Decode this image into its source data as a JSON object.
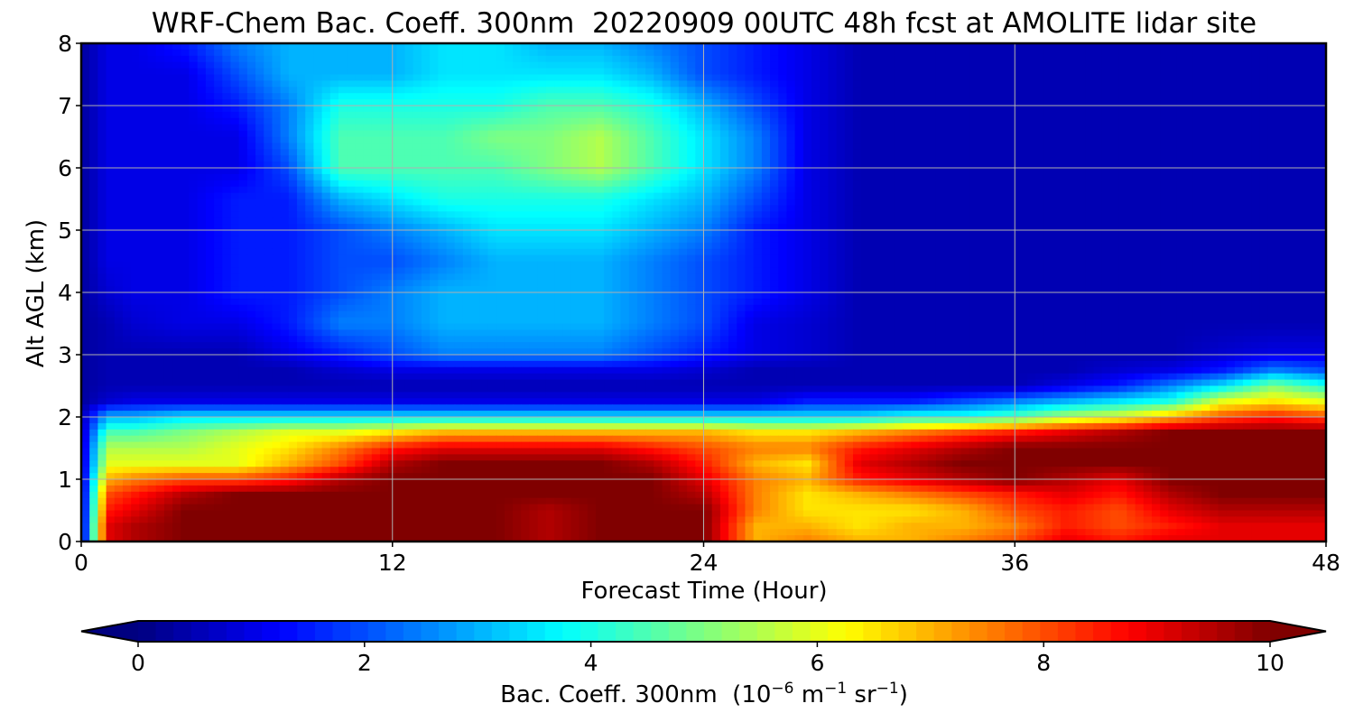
{
  "chart_data": {
    "type": "heatmap",
    "title": "WRF-Chem Bac. Coeff. 300nm  20220909 00UTC 48h fcst at AMOLITE lidar site",
    "xlabel": "Forecast Time (Hour)",
    "ylabel": "Alt AGL (km)",
    "xlim": [
      0,
      48
    ],
    "ylim": [
      0,
      8
    ],
    "xticks": [
      "0",
      "12",
      "24",
      "36",
      "48"
    ],
    "yticks": [
      "0",
      "1",
      "2",
      "3",
      "4",
      "5",
      "6",
      "7",
      "8"
    ],
    "grid": true,
    "colormap": "jet",
    "colorbar": {
      "orientation": "horizontal",
      "range": [
        0,
        10
      ],
      "ticks": [
        "0",
        "2",
        "4",
        "6",
        "8",
        "10"
      ],
      "extend": "both",
      "label_main": "Bac. Coeff. 300nm  (10",
      "label_exp1": "−6",
      "label_unit1": " m",
      "label_exp2": "−1",
      "label_unit2": " sr",
      "label_exp3": "−1",
      "label_close": ")"
    },
    "x": [
      0,
      1,
      2,
      4,
      6,
      8,
      10,
      12,
      14,
      16,
      18,
      20,
      22,
      24,
      26,
      28,
      30,
      32,
      34,
      36,
      38,
      40,
      42,
      44,
      46,
      48
    ],
    "y": [
      0,
      0.25,
      0.5,
      0.75,
      1,
      1.25,
      1.5,
      1.75,
      2,
      2.25,
      2.5,
      2.75,
      3,
      3.5,
      4,
      4.5,
      5,
      5.5,
      6,
      6.5,
      7,
      7.5,
      8
    ],
    "z": [
      [
        0.5,
        9,
        9.5,
        10,
        10,
        10,
        10,
        10,
        10,
        10,
        9.5,
        10,
        10,
        10,
        7,
        7.5,
        7,
        7,
        7.5,
        8,
        9,
        8.5,
        9,
        9,
        9,
        9
      ],
      [
        0.5,
        9,
        9.5,
        10,
        10,
        10,
        10,
        10,
        10,
        10,
        9.5,
        10,
        10,
        10,
        7,
        7,
        6.5,
        7,
        7,
        7.5,
        8.5,
        8,
        8.5,
        9,
        9,
        9
      ],
      [
        0.5,
        8.5,
        9,
        10,
        10,
        10,
        10,
        10,
        10,
        10,
        9.5,
        10,
        10,
        10,
        7.5,
        6.5,
        6.5,
        6.5,
        7,
        8,
        8.5,
        8,
        9,
        9.5,
        9.5,
        9.5
      ],
      [
        0.5,
        8,
        8.5,
        9.5,
        10,
        10,
        10,
        10,
        10,
        10,
        10,
        10,
        10,
        9.5,
        7.5,
        6.5,
        7,
        7.5,
        8,
        8.5,
        9,
        8.5,
        9.5,
        10,
        10,
        10
      ],
      [
        0.5,
        7,
        7.5,
        8,
        8,
        8.5,
        9.5,
        10,
        10,
        10,
        10,
        10,
        10,
        9,
        7.5,
        7,
        8.5,
        9,
        9.5,
        10,
        9.5,
        9,
        10,
        10,
        10,
        10
      ],
      [
        0.5,
        6,
        6,
        6,
        6,
        7,
        8,
        9.5,
        10,
        10,
        10,
        10,
        9.5,
        8.5,
        7,
        6.5,
        9,
        9.5,
        10,
        10,
        10,
        10,
        10,
        10,
        10,
        10
      ],
      [
        0.5,
        5.5,
        5.5,
        5.5,
        6,
        6.5,
        7.5,
        8.5,
        9,
        9,
        9,
        9,
        8.5,
        8,
        7.5,
        7.5,
        8.5,
        9,
        9.5,
        10,
        10,
        10,
        10,
        10,
        10,
        10
      ],
      [
        0.5,
        4.5,
        4.5,
        5,
        5.5,
        6,
        6,
        6.5,
        7,
        7,
        7,
        7,
        7,
        7,
        6.5,
        6.5,
        7,
        7.5,
        8,
        8.5,
        9,
        9.5,
        10,
        10,
        10,
        10
      ],
      [
        0.5,
        3,
        3,
        3.5,
        3.5,
        3.5,
        3.5,
        3.5,
        3.5,
        3.5,
        3.5,
        3.5,
        3.5,
        3.5,
        3.5,
        3.5,
        3.5,
        4,
        4,
        4.5,
        5.5,
        6,
        7,
        8,
        8.5,
        8
      ],
      [
        0.3,
        0.8,
        1,
        1,
        1,
        1,
        1,
        1,
        1,
        1,
        1,
        1,
        1,
        1,
        1,
        1.5,
        1.5,
        1.5,
        2,
        2.5,
        3,
        3.5,
        4,
        6,
        6.5,
        6
      ],
      [
        0.3,
        0.5,
        0.5,
        0.5,
        0.5,
        0.5,
        0.5,
        0.5,
        0.5,
        0.5,
        0.5,
        0.5,
        0.5,
        0.5,
        0.5,
        0.5,
        0.5,
        0.5,
        0.5,
        0.5,
        1,
        1.5,
        2.5,
        3.5,
        5,
        4
      ],
      [
        0.3,
        0.5,
        0.5,
        0.5,
        0.5,
        0.5,
        0.8,
        1,
        1,
        1,
        1,
        1,
        1,
        0.8,
        0.5,
        0.5,
        0.5,
        0.5,
        0.5,
        0.5,
        0.5,
        0.8,
        1,
        1.5,
        2.5,
        2
      ],
      [
        0.3,
        0.5,
        0.5,
        0.5,
        0.5,
        1,
        1.5,
        2,
        2.5,
        2.5,
        2.5,
        2.5,
        2,
        1.5,
        1,
        0.8,
        0.5,
        0.5,
        0.5,
        0.5,
        0.5,
        0.5,
        0.5,
        0.8,
        1,
        1
      ],
      [
        0.3,
        0.5,
        0.8,
        1,
        1,
        1.5,
        2.5,
        2.5,
        3,
        3,
        3,
        3,
        2.5,
        2,
        1,
        0.8,
        0.5,
        0.5,
        0.5,
        0.5,
        0.5,
        0.5,
        0.5,
        0.5,
        0.5,
        0.5
      ],
      [
        0.3,
        0.8,
        1,
        1,
        1.5,
        1.5,
        2,
        2.5,
        3,
        3,
        3,
        3,
        2.5,
        2,
        1.5,
        1,
        0.5,
        0.5,
        0.5,
        0.5,
        0.5,
        0.5,
        0.5,
        0.5,
        0.5,
        0.5
      ],
      [
        0.3,
        1,
        1,
        1,
        1.5,
        1.5,
        2,
        2,
        2.5,
        3,
        3,
        3,
        2.5,
        2,
        1.5,
        1,
        0.5,
        0.5,
        0.5,
        0.5,
        0.5,
        0.5,
        0.5,
        0.5,
        0.5,
        0.5
      ],
      [
        0.3,
        1,
        1,
        1,
        1.5,
        1.5,
        2,
        2.5,
        3,
        3.5,
        3.5,
        3.5,
        3,
        2.5,
        1.5,
        1,
        0.5,
        0.5,
        0.5,
        0.5,
        0.5,
        0.5,
        0.5,
        0.5,
        0.5,
        0.5
      ],
      [
        0.3,
        1,
        1,
        1,
        1.5,
        1.5,
        3,
        3.5,
        4,
        4,
        4,
        4,
        3.5,
        3,
        2,
        1,
        0.5,
        0.5,
        0.5,
        0.5,
        0.5,
        0.5,
        0.5,
        0.5,
        0.5,
        0.5
      ],
      [
        0.3,
        1,
        1,
        1,
        1,
        2,
        4.5,
        4.5,
        4.5,
        4.5,
        5,
        5.5,
        4.5,
        3.5,
        2.5,
        1,
        0.5,
        0.5,
        0.5,
        0.5,
        0.5,
        0.5,
        0.5,
        0.5,
        0.5,
        0.5
      ],
      [
        0.3,
        1,
        1,
        1,
        1,
        2.5,
        4.5,
        4.5,
        4.5,
        5,
        5,
        5.5,
        4.5,
        3.5,
        2.5,
        1,
        0.5,
        0.5,
        0.5,
        0.5,
        0.5,
        0.5,
        0.5,
        0.5,
        0.5,
        0.5
      ],
      [
        0.3,
        1,
        1,
        1,
        1.5,
        2.5,
        4,
        4,
        4,
        4,
        4.5,
        4.5,
        4,
        3,
        2,
        1,
        0.5,
        0.5,
        0.5,
        0.5,
        0.5,
        0.5,
        0.5,
        0.5,
        0.5,
        0.5
      ],
      [
        0.3,
        1,
        1,
        1,
        2,
        3,
        3,
        3,
        3.5,
        3.5,
        3.5,
        3.5,
        3,
        2,
        1.5,
        1,
        0.5,
        0.5,
        0.5,
        0.5,
        0.5,
        0.5,
        0.5,
        0.5,
        0.5,
        0.5
      ],
      [
        0.3,
        1,
        1,
        1.5,
        2.5,
        3,
        3,
        3,
        3.5,
        3.5,
        3,
        3,
        2.5,
        2,
        1.5,
        1,
        0.5,
        0.5,
        0.5,
        0.5,
        0.5,
        0.5,
        0.5,
        0.5,
        0.5,
        0.5
      ]
    ]
  }
}
